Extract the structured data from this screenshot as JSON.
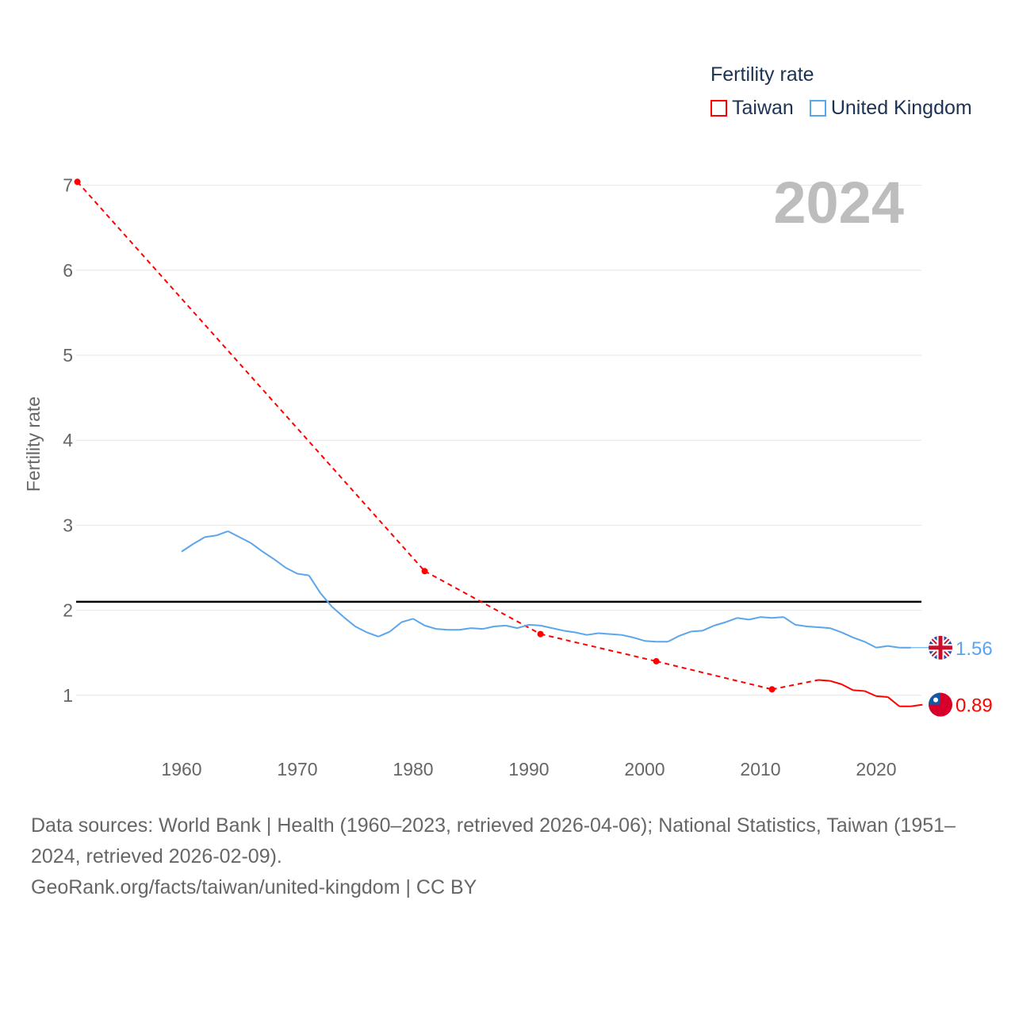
{
  "legend": {
    "title": "Fertility rate",
    "items": [
      {
        "label": "Taiwan",
        "color": "#ff0000"
      },
      {
        "label": "United Kingdom",
        "color": "#5aa5ec"
      }
    ]
  },
  "footer": {
    "sources": "Data sources: World Bank | Health (1960–2023, retrieved 2026-04-06); National Statistics, Taiwan (1951–2024, retrieved 2026-02-09).",
    "credit": "GeoRank.org/facts/taiwan/united-kingdom | CC BY"
  },
  "chart_data": {
    "type": "line",
    "year_label": "2024",
    "ylabel": "Fertility rate",
    "xlim": [
      1951,
      2024
    ],
    "ylim": [
      0.5,
      7.2
    ],
    "x_ticks": [
      "1960",
      "1970",
      "1980",
      "1990",
      "2000",
      "2010",
      "2020"
    ],
    "y_ticks": [
      "1",
      "2",
      "3",
      "4",
      "5",
      "6",
      "7"
    ],
    "reference_line": 2.1,
    "grid": true,
    "legend_position": "top-right",
    "series": [
      {
        "name": "Taiwan",
        "color": "#ff0000",
        "end_label": "0.89",
        "points": [
          [
            1951,
            7.04
          ],
          [
            1981,
            2.46
          ],
          [
            1991,
            1.72
          ],
          [
            2001,
            1.4
          ],
          [
            2011,
            1.07
          ],
          [
            2015,
            1.18
          ],
          [
            2016,
            1.17
          ],
          [
            2017,
            1.13
          ],
          [
            2018,
            1.06
          ],
          [
            2019,
            1.05
          ],
          [
            2020,
            0.99
          ],
          [
            2021,
            0.98
          ],
          [
            2022,
            0.87
          ],
          [
            2023,
            0.87
          ],
          [
            2024,
            0.89
          ]
        ]
      },
      {
        "name": "United Kingdom",
        "color": "#5aa5ec",
        "end_label": "1.56",
        "points": [
          [
            1960,
            2.69
          ],
          [
            1961,
            2.78
          ],
          [
            1962,
            2.86
          ],
          [
            1963,
            2.88
          ],
          [
            1964,
            2.93
          ],
          [
            1965,
            2.86
          ],
          [
            1966,
            2.79
          ],
          [
            1967,
            2.69
          ],
          [
            1968,
            2.6
          ],
          [
            1969,
            2.5
          ],
          [
            1970,
            2.43
          ],
          [
            1971,
            2.41
          ],
          [
            1972,
            2.2
          ],
          [
            1973,
            2.04
          ],
          [
            1974,
            1.92
          ],
          [
            1975,
            1.81
          ],
          [
            1976,
            1.74
          ],
          [
            1977,
            1.69
          ],
          [
            1978,
            1.75
          ],
          [
            1979,
            1.86
          ],
          [
            1980,
            1.9
          ],
          [
            1981,
            1.82
          ],
          [
            1982,
            1.78
          ],
          [
            1983,
            1.77
          ],
          [
            1984,
            1.77
          ],
          [
            1985,
            1.79
          ],
          [
            1986,
            1.78
          ],
          [
            1987,
            1.81
          ],
          [
            1988,
            1.82
          ],
          [
            1989,
            1.79
          ],
          [
            1990,
            1.83
          ],
          [
            1991,
            1.82
          ],
          [
            1992,
            1.79
          ],
          [
            1993,
            1.76
          ],
          [
            1994,
            1.74
          ],
          [
            1995,
            1.71
          ],
          [
            1996,
            1.73
          ],
          [
            1997,
            1.72
          ],
          [
            1998,
            1.71
          ],
          [
            1999,
            1.68
          ],
          [
            2000,
            1.64
          ],
          [
            2001,
            1.63
          ],
          [
            2002,
            1.63
          ],
          [
            2003,
            1.7
          ],
          [
            2004,
            1.75
          ],
          [
            2005,
            1.76
          ],
          [
            2006,
            1.82
          ],
          [
            2007,
            1.86
          ],
          [
            2008,
            1.91
          ],
          [
            2009,
            1.89
          ],
          [
            2010,
            1.92
          ],
          [
            2011,
            1.91
          ],
          [
            2012,
            1.92
          ],
          [
            2013,
            1.83
          ],
          [
            2014,
            1.81
          ],
          [
            2015,
            1.8
          ],
          [
            2016,
            1.79
          ],
          [
            2017,
            1.74
          ],
          [
            2018,
            1.68
          ],
          [
            2019,
            1.63
          ],
          [
            2020,
            1.56
          ],
          [
            2021,
            1.58
          ],
          [
            2022,
            1.56
          ],
          [
            2023,
            1.56
          ]
        ]
      }
    ]
  }
}
